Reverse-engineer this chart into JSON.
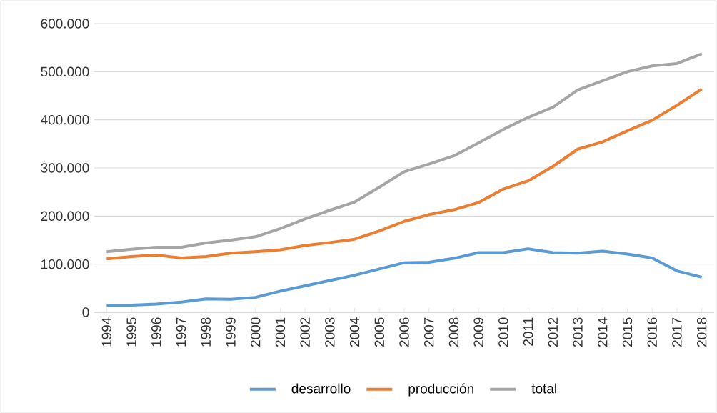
{
  "chart_data": {
    "type": "line",
    "categories": [
      "1994",
      "1995",
      "1996",
      "1997",
      "1998",
      "1999",
      "2000",
      "2001",
      "2002",
      "2003",
      "2004",
      "2005",
      "2006",
      "2007",
      "2008",
      "2009",
      "2010",
      "2011",
      "2012",
      "2013",
      "2014",
      "2015",
      "2016",
      "2017",
      "2018"
    ],
    "series": [
      {
        "name": "desarrollo",
        "color": "#5b9bd5",
        "values": [
          15000,
          15000,
          17000,
          21000,
          28000,
          27000,
          31000,
          44000,
          55000,
          66000,
          77000,
          90000,
          103000,
          104000,
          112000,
          124000,
          124000,
          132000,
          124000,
          123000,
          127000,
          121000,
          113000,
          86000,
          73000
        ]
      },
      {
        "name": "producción",
        "color": "#ed7d31",
        "values": [
          111000,
          116000,
          119000,
          113000,
          116000,
          123000,
          126000,
          130000,
          139000,
          145000,
          152000,
          169000,
          189000,
          203000,
          213000,
          228000,
          256000,
          273000,
          303000,
          339000,
          354000,
          377000,
          399000,
          430000,
          464000
        ]
      },
      {
        "name": "total",
        "color": "#a5a5a5",
        "values": [
          126000,
          131000,
          135000,
          135000,
          144000,
          150000,
          157000,
          174000,
          194000,
          212000,
          229000,
          260000,
          292000,
          308000,
          325000,
          352000,
          380000,
          405000,
          426000,
          462000,
          481000,
          500000,
          512000,
          517000,
          537000
        ]
      }
    ],
    "ylim": [
      0,
      600000
    ],
    "yticks": [
      0,
      {
        "value": 100000,
        "label": "100.000"
      },
      {
        "value": 200000,
        "label": "200.000"
      },
      {
        "value": 300000,
        "label": "300.000"
      },
      {
        "value": 400000,
        "label": "400.000"
      },
      {
        "value": 500000,
        "label": "500.000"
      },
      {
        "value": 600000,
        "label": "600.000"
      }
    ],
    "grid": "y",
    "legend": "bottom",
    "marker": "none",
    "line_style": "solid"
  }
}
